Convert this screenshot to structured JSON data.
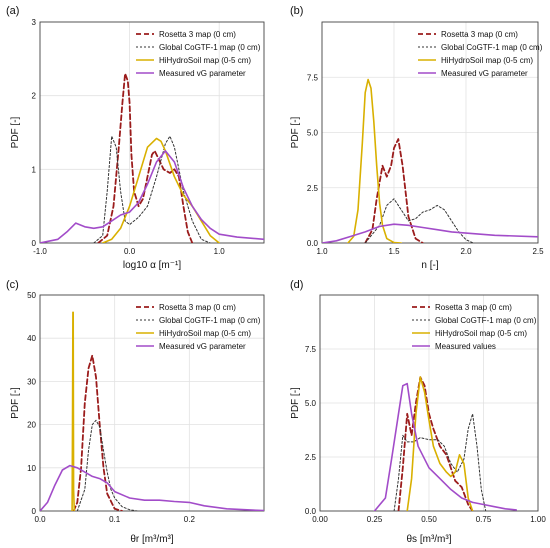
{
  "colors": {
    "rosetta": "#9b1c1c",
    "global": "#333333",
    "hihydro": "#d9b000",
    "measured": "#a24cc9"
  },
  "chart_data": [
    {
      "type": "line",
      "panel": "(a)",
      "xlabel": "log10 α [m⁻¹]",
      "ylabel": "PDF [-]",
      "xlim": [
        -1.0,
        1.5
      ],
      "ylim": [
        0,
        3
      ],
      "xticks": [
        "-1.0",
        "0.0",
        "1.0"
      ],
      "xtick_values": [
        -1.0,
        0.0,
        1.0
      ],
      "yticks": [
        "0",
        "1",
        "2",
        "3"
      ],
      "ytick_values": [
        0,
        1,
        2,
        3
      ],
      "legend_position": "top-right",
      "series": [
        {
          "name": "Rosetta 3 map (0 cm)",
          "key": "rosetta",
          "style": "dash",
          "x": [
            -0.35,
            -0.25,
            -0.18,
            -0.12,
            -0.08,
            -0.05,
            -0.02,
            0.0,
            0.02,
            0.05,
            0.1,
            0.15,
            0.2,
            0.25,
            0.28,
            0.32,
            0.38,
            0.45,
            0.5,
            0.55,
            0.6,
            0.65,
            0.7
          ],
          "y": [
            0.0,
            0.1,
            0.5,
            1.3,
            1.9,
            2.3,
            2.2,
            1.9,
            1.2,
            0.7,
            0.5,
            0.6,
            0.9,
            1.2,
            1.25,
            1.15,
            1.0,
            0.95,
            1.0,
            0.9,
            0.5,
            0.15,
            0.0
          ]
        },
        {
          "name": "Global CoGTF-1 map (0 cm)",
          "key": "global",
          "style": "dot",
          "x": [
            -0.4,
            -0.3,
            -0.25,
            -0.2,
            -0.15,
            -0.1,
            -0.05,
            0.0,
            0.05,
            0.1,
            0.2,
            0.3,
            0.4,
            0.45,
            0.5,
            0.55,
            0.6,
            0.7,
            0.8,
            0.9
          ],
          "y": [
            0.0,
            0.1,
            0.7,
            1.45,
            1.3,
            0.7,
            0.3,
            0.25,
            0.3,
            0.35,
            0.5,
            0.9,
            1.35,
            1.45,
            1.3,
            1.0,
            0.7,
            0.3,
            0.05,
            0.0
          ]
        },
        {
          "name": "HiHydroSoil map  (0-5 cm)",
          "key": "hihydro",
          "style": "solid",
          "x": [
            -0.3,
            -0.2,
            -0.1,
            0.0,
            0.1,
            0.2,
            0.3,
            0.35,
            0.4,
            0.5,
            0.6,
            0.7,
            0.8,
            0.9,
            1.0
          ],
          "y": [
            0.0,
            0.05,
            0.2,
            0.5,
            0.9,
            1.3,
            1.42,
            1.38,
            1.25,
            0.9,
            0.65,
            0.5,
            0.3,
            0.1,
            0.0
          ]
        },
        {
          "name": "Measured vG parameter",
          "key": "measured",
          "style": "solid",
          "x": [
            -1.0,
            -0.8,
            -0.7,
            -0.6,
            -0.5,
            -0.4,
            -0.3,
            -0.2,
            -0.1,
            0.0,
            0.1,
            0.2,
            0.3,
            0.4,
            0.5,
            0.6,
            0.7,
            0.8,
            0.9,
            1.0,
            1.2,
            1.5
          ],
          "y": [
            0.0,
            0.05,
            0.15,
            0.27,
            0.22,
            0.2,
            0.22,
            0.3,
            0.38,
            0.42,
            0.55,
            0.8,
            1.1,
            1.25,
            1.1,
            0.75,
            0.5,
            0.32,
            0.2,
            0.12,
            0.08,
            0.05
          ]
        }
      ]
    },
    {
      "type": "line",
      "panel": "(b)",
      "xlabel": "n [-]",
      "ylabel": "PDF [-]",
      "xlim": [
        1.0,
        2.5
      ],
      "ylim": [
        0,
        10
      ],
      "xticks": [
        "1.0",
        "1.5",
        "2.0",
        "2.5"
      ],
      "xtick_values": [
        1.0,
        1.5,
        2.0,
        2.5
      ],
      "yticks": [
        "0.0",
        "2.5",
        "5.0",
        "7.5"
      ],
      "ytick_values": [
        0,
        2.5,
        5.0,
        7.5
      ],
      "legend_position": "top-right",
      "series": [
        {
          "name": "Rosetta 3 map (0 cm)",
          "key": "rosetta",
          "style": "dash",
          "x": [
            1.3,
            1.35,
            1.38,
            1.42,
            1.45,
            1.48,
            1.5,
            1.53,
            1.56,
            1.6,
            1.65,
            1.7
          ],
          "y": [
            0.0,
            0.6,
            2.0,
            3.5,
            3.0,
            3.5,
            4.3,
            4.7,
            3.5,
            1.2,
            0.2,
            0.0
          ]
        },
        {
          "name": "Global CoGTF-1 map (0 cm)",
          "key": "global",
          "style": "dot",
          "x": [
            1.3,
            1.4,
            1.45,
            1.5,
            1.55,
            1.6,
            1.65,
            1.7,
            1.75,
            1.8,
            1.85,
            1.9,
            1.95,
            2.0,
            2.05
          ],
          "y": [
            0.0,
            0.8,
            1.7,
            2.0,
            1.5,
            1.0,
            1.1,
            1.4,
            1.5,
            1.7,
            1.5,
            1.0,
            0.5,
            0.15,
            0.0
          ]
        },
        {
          "name": "HiHydroSoil map  (0-5 cm)",
          "key": "hihydro",
          "style": "solid",
          "x": [
            1.18,
            1.22,
            1.25,
            1.28,
            1.3,
            1.32,
            1.34,
            1.36,
            1.38,
            1.4,
            1.42,
            1.45,
            1.5,
            1.55
          ],
          "y": [
            0.0,
            0.3,
            1.5,
            4.5,
            6.8,
            7.4,
            7.0,
            5.5,
            3.5,
            1.8,
            0.8,
            0.2,
            0.02,
            0.0
          ]
        },
        {
          "name": "Measured vG parameter",
          "key": "measured",
          "style": "solid",
          "x": [
            1.0,
            1.1,
            1.2,
            1.3,
            1.4,
            1.5,
            1.6,
            1.7,
            1.8,
            1.9,
            2.0,
            2.2,
            2.5
          ],
          "y": [
            0.0,
            0.1,
            0.3,
            0.5,
            0.75,
            0.85,
            0.8,
            0.7,
            0.6,
            0.5,
            0.45,
            0.35,
            0.28
          ]
        }
      ]
    },
    {
      "type": "line",
      "panel": "(c)",
      "xlabel": "θr [m³/m³]",
      "ylabel": "PDF [-]",
      "xlim": [
        0.0,
        0.3
      ],
      "ylim": [
        0,
        50
      ],
      "xticks": [
        "0.0",
        "0.1",
        "0.2"
      ],
      "xtick_values": [
        0.0,
        0.1,
        0.2
      ],
      "yticks": [
        "0",
        "10",
        "20",
        "30",
        "40",
        "50"
      ],
      "ytick_values": [
        0,
        10,
        20,
        30,
        40,
        50
      ],
      "legend_position": "top-right",
      "series": [
        {
          "name": "Rosetta 3 map (0 cm)",
          "key": "rosetta",
          "style": "dash",
          "x": [
            0.045,
            0.05,
            0.055,
            0.06,
            0.065,
            0.07,
            0.075,
            0.08,
            0.085,
            0.09,
            0.1,
            0.11
          ],
          "y": [
            0.0,
            2.0,
            10.0,
            25.0,
            33.0,
            36.0,
            31.0,
            20.0,
            10.0,
            4.0,
            0.5,
            0.0
          ]
        },
        {
          "name": "Global CoGTF-1 map (0 cm)",
          "key": "global",
          "style": "dot",
          "x": [
            0.05,
            0.06,
            0.065,
            0.07,
            0.075,
            0.08,
            0.085,
            0.09,
            0.095,
            0.1,
            0.11,
            0.12,
            0.13
          ],
          "y": [
            0.0,
            5.0,
            14.0,
            20.0,
            21.0,
            19.5,
            14.0,
            9.0,
            5.0,
            3.0,
            1.0,
            0.3,
            0.0
          ]
        },
        {
          "name": "HiHydroSoil map  (0-5 cm)",
          "key": "hihydro",
          "style": "solid",
          "x": [
            0.043,
            0.0435,
            0.044,
            0.0445,
            0.045,
            0.046
          ],
          "y": [
            0.0,
            20.0,
            46.0,
            46.0,
            5.0,
            0.0
          ]
        },
        {
          "name": "Measured vG parameter",
          "key": "measured",
          "style": "solid",
          "x": [
            0.0,
            0.01,
            0.02,
            0.03,
            0.04,
            0.05,
            0.06,
            0.07,
            0.08,
            0.09,
            0.1,
            0.12,
            0.14,
            0.16,
            0.18,
            0.2,
            0.22,
            0.25,
            0.3
          ],
          "y": [
            0.0,
            2.0,
            6.0,
            9.5,
            10.5,
            10.0,
            9.0,
            8.0,
            7.5,
            6.5,
            4.5,
            3.0,
            2.5,
            2.5,
            2.2,
            2.0,
            1.2,
            0.5,
            0.1
          ]
        }
      ]
    },
    {
      "type": "line",
      "panel": "(d)",
      "xlabel": "θs [m³/m³]",
      "ylabel": "PDF [-]",
      "xlim": [
        0.0,
        1.0
      ],
      "ylim": [
        0,
        10
      ],
      "xticks": [
        "0.00",
        "0.25",
        "0.50",
        "0.75",
        "1.00"
      ],
      "xtick_values": [
        0.0,
        0.25,
        0.5,
        0.75,
        1.0
      ],
      "yticks": [
        "0.0",
        "2.5",
        "5.0",
        "7.5"
      ],
      "ytick_values": [
        0,
        2.5,
        5.0,
        7.5
      ],
      "legend_position": "top-right",
      "series": [
        {
          "name": "Rosetta 3 map (0 cm)",
          "key": "rosetta",
          "style": "dash",
          "x": [
            0.36,
            0.38,
            0.4,
            0.42,
            0.44,
            0.46,
            0.48,
            0.5,
            0.52,
            0.55,
            0.58,
            0.6,
            0.62,
            0.65,
            0.68,
            0.7
          ],
          "y": [
            0.0,
            2.0,
            4.5,
            3.5,
            5.0,
            6.2,
            5.8,
            4.5,
            3.8,
            3.0,
            2.6,
            2.0,
            1.4,
            1.1,
            0.3,
            0.0
          ]
        },
        {
          "name": "Global CoGTF-1 map (0 cm)",
          "key": "global",
          "style": "dot",
          "x": [
            0.34,
            0.36,
            0.38,
            0.4,
            0.43,
            0.46,
            0.5,
            0.54,
            0.57,
            0.6,
            0.63,
            0.66,
            0.68,
            0.7,
            0.72,
            0.74,
            0.76
          ],
          "y": [
            0.0,
            1.5,
            3.5,
            3.2,
            3.2,
            3.4,
            3.3,
            3.3,
            3.0,
            2.2,
            1.8,
            2.4,
            3.8,
            4.5,
            3.0,
            1.0,
            0.0
          ]
        },
        {
          "name": "HiHydroSoil map  (0-5 cm)",
          "key": "hihydro",
          "style": "solid",
          "x": [
            0.4,
            0.42,
            0.44,
            0.46,
            0.48,
            0.5,
            0.52,
            0.55,
            0.58,
            0.6,
            0.62,
            0.64,
            0.66,
            0.68,
            0.7
          ],
          "y": [
            0.0,
            1.5,
            4.5,
            6.2,
            5.5,
            4.2,
            3.0,
            2.2,
            1.8,
            1.6,
            1.8,
            2.6,
            2.2,
            0.6,
            0.0
          ]
        },
        {
          "name": "Measured values",
          "key": "measured",
          "style": "solid",
          "x": [
            0.25,
            0.3,
            0.33,
            0.36,
            0.38,
            0.4,
            0.42,
            0.45,
            0.5,
            0.55,
            0.6,
            0.65,
            0.7,
            0.75,
            0.8,
            0.85,
            0.9
          ],
          "y": [
            0.0,
            0.6,
            2.5,
            4.5,
            5.8,
            5.9,
            4.5,
            3.0,
            2.0,
            1.5,
            1.0,
            0.6,
            0.4,
            0.3,
            0.2,
            0.1,
            0.05
          ]
        }
      ]
    }
  ]
}
